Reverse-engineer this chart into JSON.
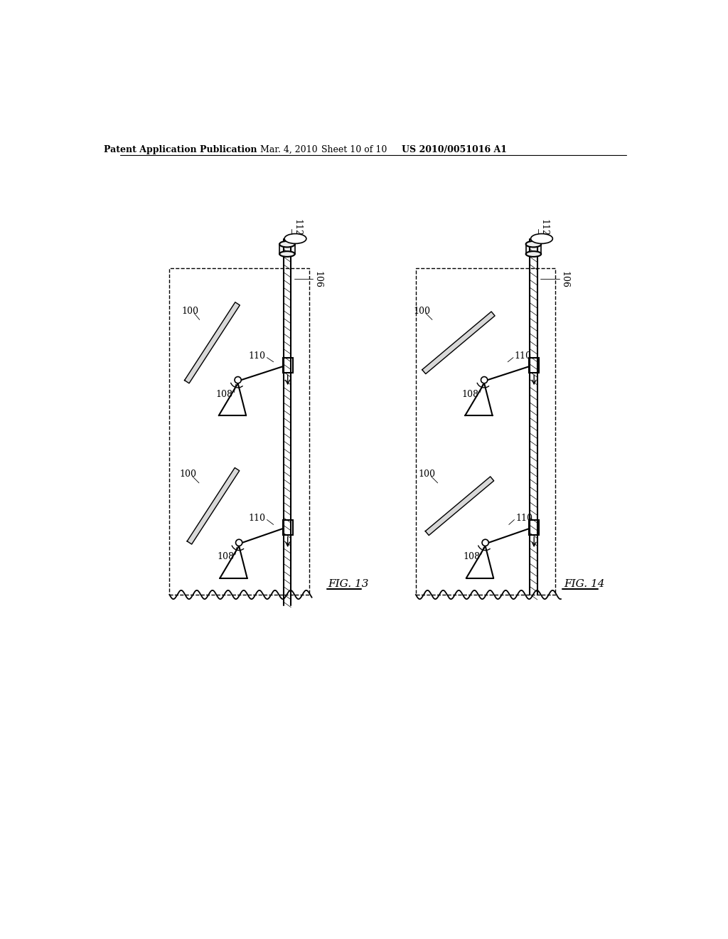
{
  "bg_color": "#ffffff",
  "header_text": "Patent Application Publication",
  "header_date": "Mar. 4, 2010",
  "header_sheet": "Sheet 10 of 10",
  "header_patent": "US 2010/0051016 A1",
  "fig13_label": "FIG. 13",
  "fig14_label": "FIG. 14"
}
